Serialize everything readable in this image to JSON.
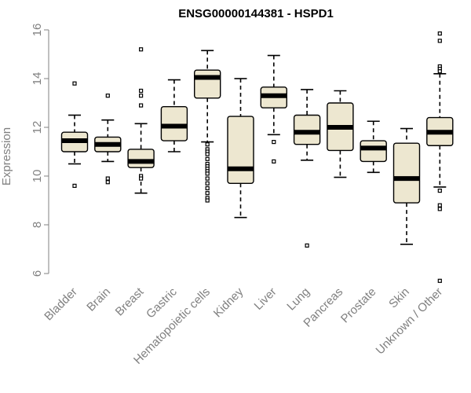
{
  "chart_data": {
    "type": "box",
    "title": "ENSG00000144381 - HSPD1",
    "xlabel": "",
    "ylabel": "Expression",
    "ylim": [
      5.5,
      16.2
    ],
    "yticks": [
      6,
      8,
      10,
      12,
      14,
      16
    ],
    "grid": false,
    "colors": {
      "box_fill": "#ede7d0",
      "box_stroke": "#000000",
      "axis": "#808080",
      "label": "#808080"
    },
    "categories": [
      "Bladder",
      "Brain",
      "Breast",
      "Gastric",
      "Hematopoietic cells",
      "Kidney",
      "Liver",
      "Lung",
      "Pancreas",
      "Prostate",
      "Skin",
      "Unknown / Other"
    ],
    "boxes": [
      {
        "name": "Bladder",
        "whisker_low": 10.5,
        "q1": 11.0,
        "median": 11.45,
        "q3": 11.8,
        "whisker_high": 12.5,
        "outliers": [
          13.8,
          9.6
        ]
      },
      {
        "name": "Brain",
        "whisker_low": 10.6,
        "q1": 11.0,
        "median": 11.3,
        "q3": 11.6,
        "whisker_high": 12.3,
        "outliers": [
          13.3,
          9.9,
          9.75
        ]
      },
      {
        "name": "Breast",
        "whisker_low": 9.3,
        "q1": 10.35,
        "median": 10.6,
        "q3": 11.1,
        "whisker_high": 12.15,
        "outliers": [
          15.2,
          13.5,
          13.3,
          12.9,
          10.0,
          9.9
        ]
      },
      {
        "name": "Gastric",
        "whisker_low": 11.0,
        "q1": 11.45,
        "median": 12.05,
        "q3": 12.85,
        "whisker_high": 13.95,
        "outliers": []
      },
      {
        "name": "Hematopoietic cells",
        "whisker_low": 11.4,
        "q1": 13.2,
        "median": 14.05,
        "q3": 14.35,
        "whisker_high": 15.15,
        "outliers": [
          11.3,
          11.1,
          11.0,
          10.9,
          10.7,
          10.5,
          10.4,
          10.3,
          10.2,
          10.1,
          9.9,
          9.7,
          9.5,
          9.3,
          9.1,
          9.0
        ]
      },
      {
        "name": "Kidney",
        "whisker_low": 8.3,
        "q1": 9.7,
        "median": 10.3,
        "q3": 12.45,
        "whisker_high": 14.0,
        "outliers": []
      },
      {
        "name": "Liver",
        "whisker_low": 11.7,
        "q1": 12.8,
        "median": 13.3,
        "q3": 13.65,
        "whisker_high": 14.95,
        "outliers": [
          11.4,
          10.6
        ]
      },
      {
        "name": "Lung",
        "whisker_low": 10.65,
        "q1": 11.3,
        "median": 11.8,
        "q3": 12.5,
        "whisker_high": 13.55,
        "outliers": [
          7.15
        ]
      },
      {
        "name": "Pancreas",
        "whisker_low": 9.95,
        "q1": 11.05,
        "median": 12.0,
        "q3": 13.0,
        "whisker_high": 13.5,
        "outliers": []
      },
      {
        "name": "Prostate",
        "whisker_low": 10.15,
        "q1": 10.6,
        "median": 11.15,
        "q3": 11.45,
        "whisker_high": 12.25,
        "outliers": []
      },
      {
        "name": "Skin",
        "whisker_low": 7.2,
        "q1": 8.9,
        "median": 9.9,
        "q3": 11.35,
        "whisker_high": 11.95,
        "outliers": []
      },
      {
        "name": "Unknown / Other",
        "whisker_low": 9.55,
        "q1": 11.25,
        "median": 11.8,
        "q3": 12.4,
        "whisker_high": 14.2,
        "outliers": [
          15.85,
          15.55,
          14.5,
          14.4,
          14.3,
          9.4,
          8.8,
          8.65,
          5.7
        ]
      }
    ]
  }
}
